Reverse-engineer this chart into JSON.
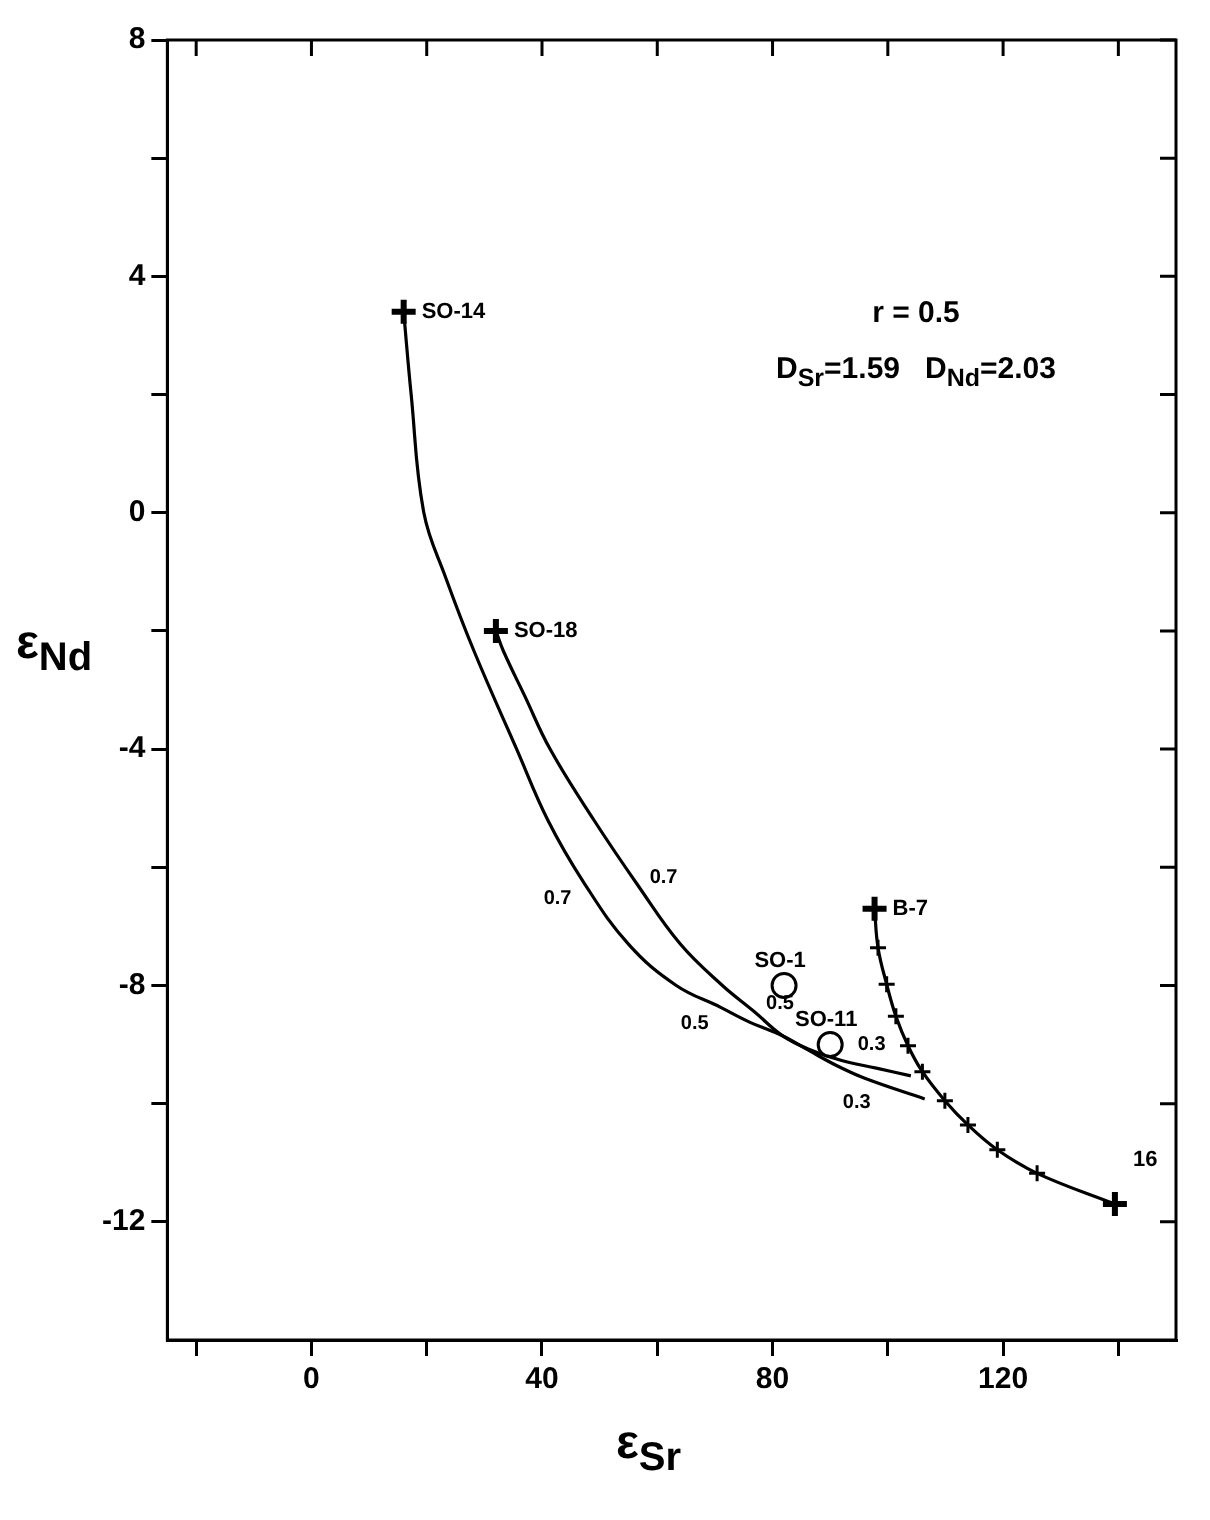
{
  "chart_data": {
    "type": "line",
    "xlabel": "ε$_{Sr}$",
    "ylabel": "ε$_{Nd}$",
    "annotations": [
      "r = 0.5",
      "D$_{Sr}$=1.59   D$_{Nd}$=2.03",
      {
        "text": "0.7",
        "x": 47.2,
        "y": -6.25
      },
      {
        "text": "0.7",
        "x": 56.6,
        "y": -6.3
      },
      {
        "text": "0.5",
        "x": 71,
        "y": -8.37
      },
      {
        "text": "0.5",
        "x": 76.8,
        "y": -8.44
      },
      {
        "text": "0.3",
        "x": 92,
        "y": -9.27
      },
      {
        "text": "0.3",
        "x": 96,
        "y": -9.57
      }
    ],
    "xlim": [
      -25,
      150
    ],
    "ylim": [
      -14,
      8
    ],
    "xticks": [
      {
        "value": -20,
        "label": null
      },
      0,
      {
        "value": 20,
        "label": null
      },
      40,
      {
        "value": 60,
        "label": null
      },
      80,
      {
        "value": 100,
        "label": null
      },
      120,
      {
        "value": 140,
        "label": null
      }
    ],
    "yticks": [
      -12,
      {
        "value": -10,
        "label": null
      },
      -8,
      {
        "value": -6,
        "label": null
      },
      -4,
      {
        "value": -2,
        "label": null
      },
      0,
      {
        "value": 2,
        "label": null
      },
      4,
      {
        "value": 6,
        "label": null
      },
      8
    ],
    "grid": false,
    "legend": false,
    "marker": "none",
    "line_style": "solid",
    "series": [
      {
        "color": "#000000",
        "x": [
          16,
          17.3,
          19.5,
          23.3,
          28.2,
          35.6,
          41,
          47.2,
          55,
          63.3,
          71,
          76,
          81.7,
          86.3,
          91,
          96,
          106.4
        ],
        "values": [
          3.4,
          2,
          0,
          -1.1,
          -2.34,
          -4,
          -5.2,
          -6.25,
          -7.3,
          -8,
          -8.37,
          -8.62,
          -8.85,
          -9.1,
          -9.35,
          -9.57,
          -9.92
        ]
      },
      {
        "color": "#000000",
        "x": [
          32,
          33.3,
          37,
          41.4,
          49,
          56.6,
          64,
          71.3,
          76.8,
          81.7,
          86.3,
          92,
          98,
          104
        ],
        "values": [
          -2,
          -2.34,
          -3.1,
          -4,
          -5.2,
          -6.3,
          -7.3,
          -8,
          -8.44,
          -8.85,
          -9.08,
          -9.27,
          -9.4,
          -9.53
        ]
      },
      {
        "color": "#000000",
        "marker": "cross",
        "x": [
          97.7,
          98.3,
          99.8,
          101.4,
          103.5,
          106,
          109.9,
          113.9,
          119,
          125.9,
          139.4
        ],
        "values": [
          -6.7,
          -7.36,
          -7.98,
          -8.52,
          -9.02,
          -9.46,
          -9.95,
          -10.36,
          -10.78,
          -11.18,
          -11.7
        ]
      },
      {
        "type": "scatter",
        "name": "SO-14",
        "color": "#000000",
        "marker": "cross",
        "x": [
          16
        ],
        "values": [
          3.4
        ]
      },
      {
        "type": "scatter",
        "name": "SO-18",
        "color": "#000000",
        "marker": "cross",
        "x": [
          32
        ],
        "values": [
          -2
        ]
      },
      {
        "type": "scatter",
        "name": "SO-1",
        "color": "#000000",
        "marker": "circle",
        "x": [
          82
        ],
        "values": [
          -8
        ]
      },
      {
        "type": "scatter",
        "name": "SO-11",
        "color": "#000000",
        "marker": "circle",
        "x": [
          90
        ],
        "values": [
          -9
        ]
      },
      {
        "type": "scatter",
        "name": "B-7",
        "color": "#000000",
        "marker": "cross",
        "x": [
          97.7
        ],
        "values": [
          -6.7
        ]
      },
      {
        "type": "scatter",
        "name": "16",
        "color": "#000000",
        "marker": "cross",
        "x": [
          139.4
        ],
        "values": [
          -11.7
        ]
      }
    ]
  }
}
